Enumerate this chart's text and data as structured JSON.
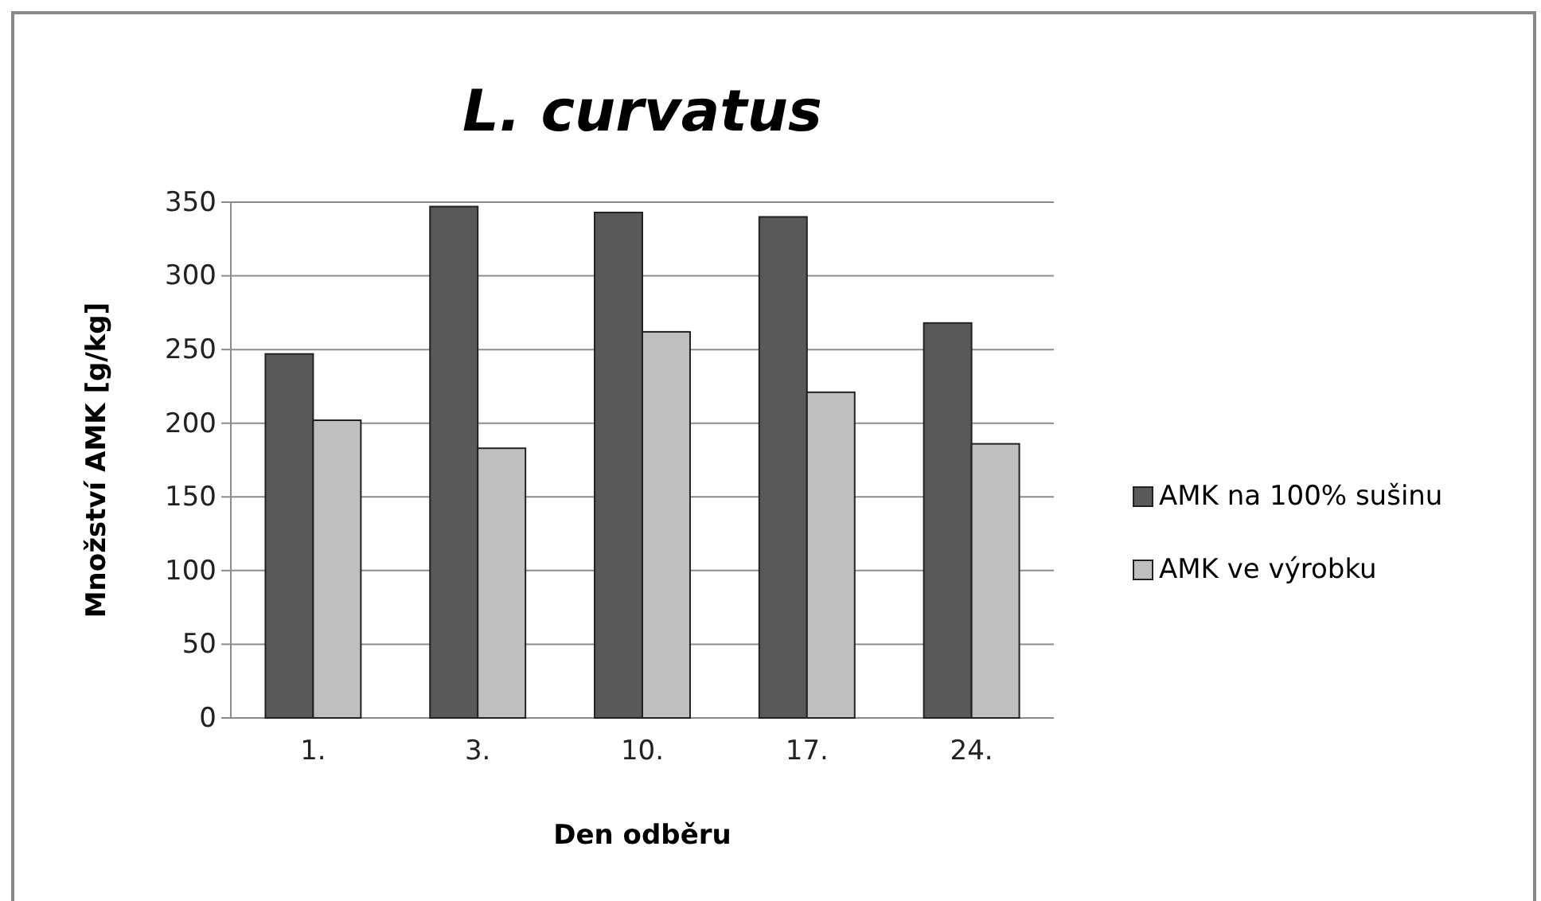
{
  "chart_data": {
    "type": "bar",
    "title": "L. curvatus",
    "xlabel": "Den odběru",
    "ylabel": "Množství AMK [g/kg]",
    "categories": [
      "1.",
      "3.",
      "10.",
      "17.",
      "24."
    ],
    "series": [
      {
        "name": "AMK na 100% sušinu",
        "color": "#595959",
        "values": [
          247,
          347,
          343,
          340,
          268
        ]
      },
      {
        "name": "AMK ve výrobku",
        "color": "#bfbfbf",
        "values": [
          202,
          183,
          262,
          221,
          186
        ]
      }
    ],
    "ylim": [
      0,
      350
    ],
    "yticks": [
      0,
      50,
      100,
      150,
      200,
      250,
      300,
      350
    ],
    "grid": "y",
    "legend": "right"
  }
}
